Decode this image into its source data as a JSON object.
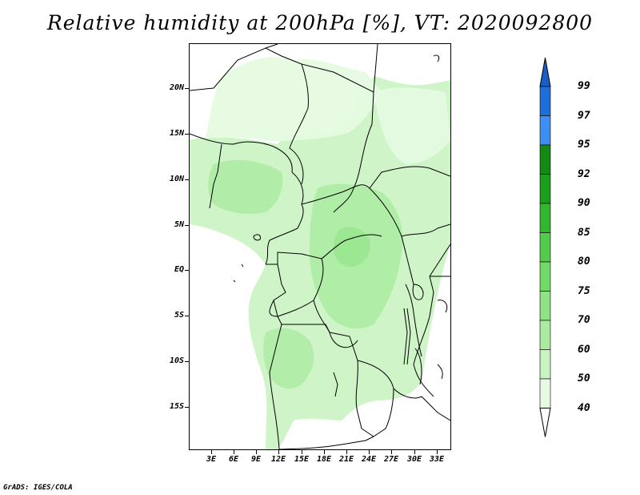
{
  "title": "Relative humidity at 200hPa [%], VT: 2020092800",
  "credit": "GrADS: IGES/COLA",
  "map": {
    "lat_labels": [
      "20N",
      "15N",
      "10N",
      "5N",
      "EQ",
      "5S",
      "10S",
      "15S"
    ],
    "lon_labels": [
      "3E",
      "6E",
      "9E",
      "12E",
      "15E",
      "18E",
      "21E",
      "24E",
      "27E",
      "30E",
      "33E"
    ],
    "field": "relative humidity",
    "level": "200hPa",
    "units": "%"
  },
  "colorbar": {
    "levels": [
      "40",
      "50",
      "60",
      "70",
      "75",
      "80",
      "85",
      "90",
      "92",
      "95",
      "97",
      "99"
    ],
    "colors": [
      "#ffffff",
      "#e6fbe2",
      "#c9f3c1",
      "#aaeba0",
      "#8fe385",
      "#70da66",
      "#52cc4a",
      "#32b82e",
      "#1a9f1a",
      "#138a12",
      "#3d8ff2",
      "#1e6fdc",
      "#1b5dc8"
    ]
  }
}
